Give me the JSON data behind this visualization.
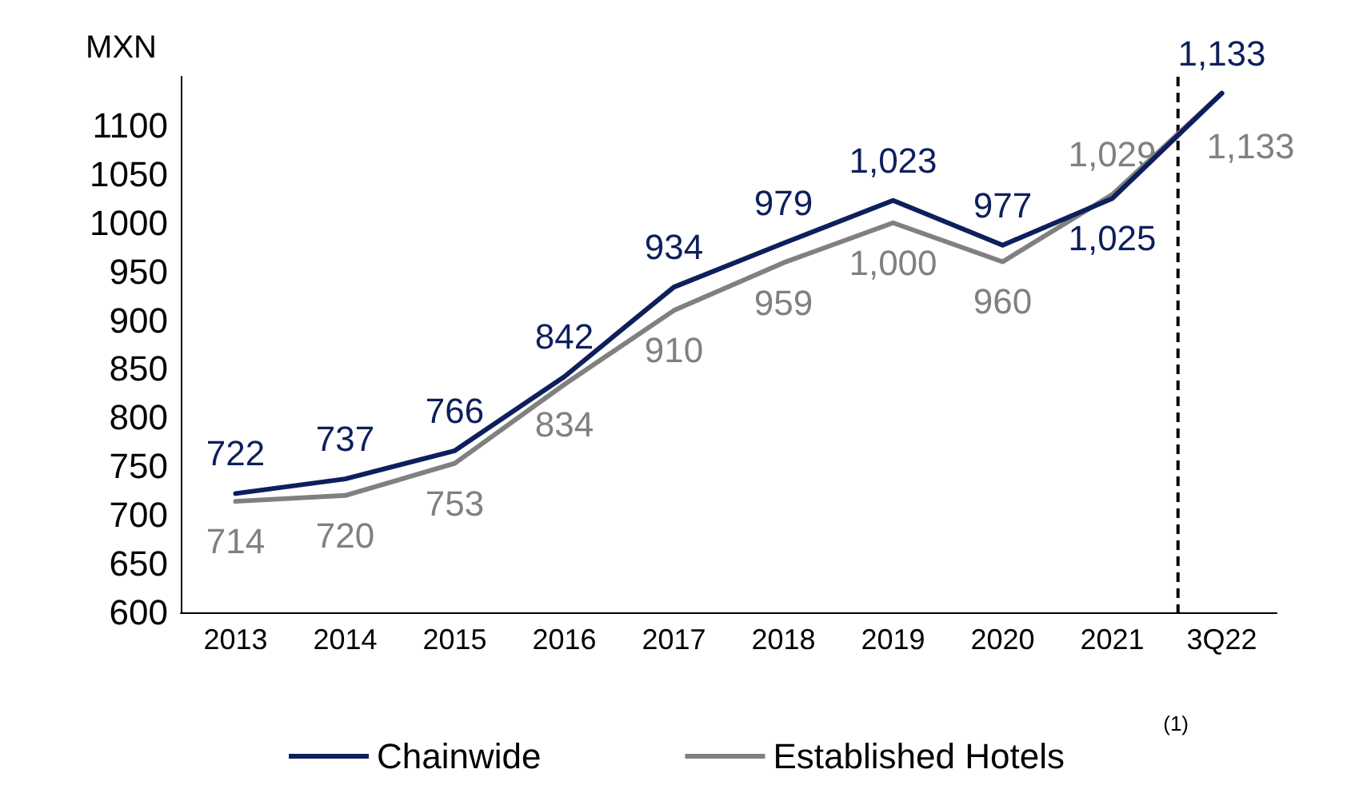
{
  "chart_data": {
    "type": "line",
    "ylabel": "MXN",
    "categories": [
      "2013",
      "2014",
      "2015",
      "2016",
      "2017",
      "2018",
      "2019",
      "2020",
      "2021",
      "3Q22"
    ],
    "series": [
      {
        "name": "Chainwide",
        "color": "#0d1f5c",
        "values": [
          722,
          737,
          766,
          842,
          934,
          979,
          1023,
          977,
          1025,
          1133
        ],
        "value_labels": [
          "722",
          "737",
          "766",
          "842",
          "934",
          "979",
          "1,023",
          "977",
          "1,025",
          "1,133"
        ]
      },
      {
        "name": "Established Hotels",
        "color": "#808080",
        "values": [
          714,
          720,
          753,
          834,
          910,
          959,
          1000,
          960,
          1029,
          1133
        ],
        "value_labels": [
          "714",
          "720",
          "753",
          "834",
          "910",
          "959",
          "1,000",
          "960",
          "1,029",
          "1,133"
        ]
      }
    ],
    "annotations": [
      "(1)"
    ],
    "ylim": [
      600,
      1150
    ],
    "yticks": [
      600,
      650,
      700,
      750,
      800,
      850,
      900,
      950,
      1000,
      1050,
      1100
    ],
    "ref_lines": [
      {
        "axis": "x",
        "value": "3Q22",
        "line_style": "dashed",
        "color": "#000000"
      }
    ],
    "grid": false,
    "legend": "bottom",
    "marker": "none",
    "line_style": "solid"
  }
}
